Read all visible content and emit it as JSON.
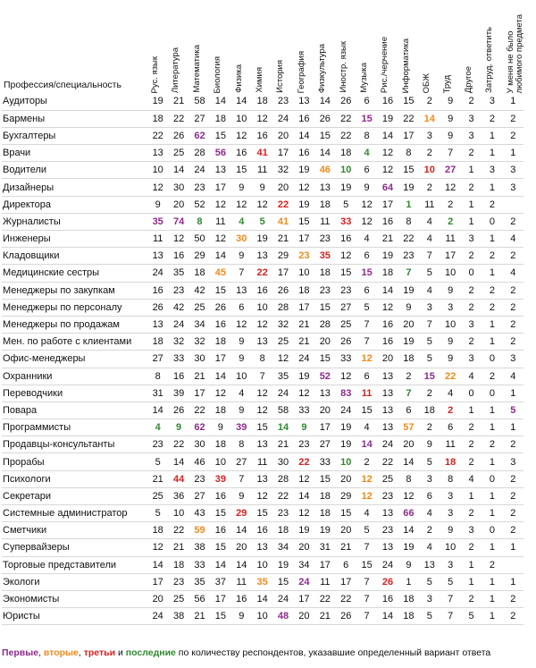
{
  "header": {
    "profession_label": "Профессия/специальность",
    "subjects": [
      "Рус. язык",
      "Литература",
      "Математика",
      "Биология",
      "Физика",
      "Химия",
      "История",
      "География",
      "Физкультура",
      "Иностр. язык",
      "Музыка",
      "Рис./черчение",
      "Информатика",
      "ОБЖ",
      "Труд",
      "Другое",
      "Затруд. ответить",
      "У меня не было\nлюбимого предмета"
    ]
  },
  "colors": {
    "first": "#8e2b8c",
    "second": "#f08a1c",
    "third": "#d72020",
    "last": "#2f8a2f"
  },
  "rows": [
    {
      "name": "Аудиторы",
      "values": [
        19,
        21,
        58,
        14,
        14,
        18,
        23,
        13,
        14,
        26,
        6,
        16,
        15,
        2,
        9,
        2,
        3,
        1
      ],
      "marks": {}
    },
    {
      "name": "Бармены",
      "values": [
        18,
        22,
        27,
        18,
        10,
        12,
        24,
        16,
        26,
        22,
        15,
        19,
        22,
        14,
        9,
        3,
        2,
        2
      ],
      "marks": {
        "10": "r1",
        "13": "r2"
      }
    },
    {
      "name": "Бухгалтеры",
      "values": [
        22,
        26,
        62,
        15,
        12,
        16,
        20,
        14,
        15,
        22,
        8,
        14,
        17,
        3,
        9,
        3,
        1,
        2
      ],
      "marks": {
        "2": "r1"
      }
    },
    {
      "name": "Врачи",
      "values": [
        13,
        25,
        28,
        56,
        16,
        41,
        17,
        16,
        14,
        18,
        4,
        12,
        8,
        2,
        7,
        2,
        1,
        1
      ],
      "marks": {
        "3": "r1",
        "5": "r3",
        "10": "rl"
      }
    },
    {
      "name": "Водители",
      "values": [
        10,
        14,
        24,
        13,
        15,
        11,
        32,
        19,
        46,
        10,
        6,
        12,
        15,
        10,
        27,
        1,
        3,
        3
      ],
      "marks": {
        "8": "r2",
        "9": "rl",
        "13": "r3",
        "14": "r1"
      }
    },
    {
      "name": "Дизайнеры",
      "values": [
        12,
        30,
        23,
        17,
        9,
        9,
        20,
        12,
        13,
        19,
        9,
        64,
        19,
        2,
        12,
        2,
        1,
        3
      ],
      "marks": {
        "11": "r1"
      }
    },
    {
      "name": "Директора",
      "values": [
        9,
        20,
        52,
        12,
        12,
        12,
        22,
        19,
        18,
        5,
        12,
        17,
        1,
        11,
        2,
        1,
        2,
        null
      ],
      "marks": {
        "6": "r3",
        "12": "rl"
      }
    },
    {
      "name": "Журналисты",
      "values": [
        35,
        74,
        8,
        11,
        4,
        5,
        41,
        15,
        11,
        33,
        12,
        16,
        8,
        4,
        2,
        1,
        0,
        2
      ],
      "marks": {
        "0": "r1",
        "1": "r1",
        "2": "rl",
        "4": "rl",
        "5": "rl",
        "6": "r2",
        "9": "r3",
        "14": "rl"
      }
    },
    {
      "name": "Инженеры",
      "values": [
        11,
        12,
        50,
        12,
        30,
        19,
        21,
        17,
        23,
        16,
        4,
        21,
        22,
        4,
        11,
        3,
        1,
        4
      ],
      "marks": {
        "4": "r2"
      }
    },
    {
      "name": "Кладовщики",
      "values": [
        13,
        16,
        29,
        14,
        9,
        13,
        29,
        23,
        35,
        12,
        6,
        19,
        23,
        7,
        17,
        2,
        2,
        2
      ],
      "marks": {
        "7": "r2",
        "8": "r3"
      }
    },
    {
      "name": "Медицинские сестры",
      "values": [
        24,
        35,
        18,
        45,
        7,
        22,
        17,
        10,
        18,
        15,
        15,
        18,
        7,
        5,
        10,
        0,
        1,
        4
      ],
      "marks": {
        "3": "r2",
        "5": "r3",
        "10": "r1",
        "12": "rl"
      }
    },
    {
      "name": "Менеджеры по закупкам",
      "values": [
        16,
        23,
        42,
        15,
        13,
        16,
        26,
        18,
        23,
        23,
        6,
        14,
        19,
        4,
        9,
        2,
        2,
        2
      ],
      "marks": {}
    },
    {
      "name": "Менеджеры по персоналу",
      "values": [
        26,
        42,
        25,
        26,
        6,
        10,
        28,
        17,
        15,
        27,
        5,
        12,
        9,
        3,
        3,
        2,
        2,
        2
      ],
      "marks": {}
    },
    {
      "name": "Менеджеры по продажам",
      "values": [
        13,
        24,
        34,
        16,
        12,
        12,
        32,
        21,
        28,
        25,
        7,
        16,
        20,
        7,
        10,
        3,
        1,
        2
      ],
      "marks": {}
    },
    {
      "name": "Мен. по работе с клиентами",
      "values": [
        18,
        32,
        32,
        18,
        9,
        13,
        25,
        21,
        20,
        26,
        7,
        16,
        19,
        5,
        9,
        2,
        1,
        2
      ],
      "marks": {}
    },
    {
      "name": "Офис-менеджеры",
      "values": [
        27,
        33,
        30,
        17,
        9,
        8,
        12,
        24,
        15,
        33,
        12,
        20,
        18,
        5,
        9,
        3,
        0,
        3
      ],
      "marks": {
        "10": "r2"
      }
    },
    {
      "name": "Охранники",
      "values": [
        8,
        16,
        21,
        14,
        10,
        7,
        35,
        19,
        52,
        12,
        6,
        13,
        2,
        15,
        22,
        4,
        2,
        4
      ],
      "marks": {
        "8": "r1",
        "13": "r1",
        "14": "r2"
      }
    },
    {
      "name": "Переводчики",
      "values": [
        31,
        39,
        17,
        12,
        4,
        12,
        24,
        12,
        13,
        83,
        11,
        13,
        7,
        2,
        4,
        0,
        0,
        1
      ],
      "marks": {
        "9": "r1",
        "10": "r3",
        "12": "rl"
      }
    },
    {
      "name": "Повара",
      "values": [
        14,
        26,
        22,
        18,
        9,
        12,
        58,
        33,
        20,
        24,
        15,
        13,
        6,
        18,
        2,
        1,
        1,
        5
      ],
      "marks": {
        "14": "r3",
        "17": "r1"
      }
    },
    {
      "name": "Программисты",
      "values": [
        4,
        9,
        62,
        9,
        39,
        15,
        14,
        9,
        17,
        19,
        4,
        13,
        57,
        2,
        6,
        2,
        1,
        1
      ],
      "marks": {
        "0": "rl",
        "1": "rl",
        "2": "r1",
        "4": "r1",
        "6": "rl",
        "7": "rl",
        "12": "r2"
      }
    },
    {
      "name": "Продавцы-консультанты",
      "values": [
        23,
        22,
        30,
        18,
        8,
        13,
        21,
        23,
        27,
        19,
        14,
        24,
        20,
        9,
        11,
        2,
        2,
        2
      ],
      "marks": {
        "10": "r1"
      }
    },
    {
      "name": "Прорабы",
      "values": [
        5,
        14,
        46,
        10,
        27,
        11,
        30,
        22,
        33,
        10,
        2,
        22,
        14,
        5,
        18,
        2,
        1,
        3
      ],
      "marks": {
        "7": "r3",
        "9": "rl",
        "14": "r3"
      }
    },
    {
      "name": "Психологи",
      "values": [
        21,
        44,
        23,
        39,
        7,
        13,
        28,
        12,
        15,
        20,
        12,
        25,
        8,
        3,
        8,
        4,
        0,
        2
      ],
      "marks": {
        "1": "r3",
        "3": "r3",
        "10": "r2"
      }
    },
    {
      "name": "Секретари",
      "values": [
        25,
        36,
        27,
        16,
        9,
        12,
        22,
        14,
        18,
        29,
        12,
        23,
        12,
        6,
        3,
        1,
        1,
        2
      ],
      "marks": {
        "10": "r2"
      }
    },
    {
      "name": "Системные администратор",
      "values": [
        5,
        10,
        43,
        15,
        29,
        15,
        23,
        12,
        18,
        15,
        4,
        13,
        66,
        4,
        3,
        2,
        1,
        2
      ],
      "marks": {
        "4": "r3",
        "12": "r1"
      }
    },
    {
      "name": "Сметчики",
      "values": [
        18,
        22,
        59,
        16,
        14,
        16,
        18,
        19,
        19,
        20,
        5,
        23,
        14,
        2,
        9,
        3,
        0,
        2
      ],
      "marks": {
        "2": "r2"
      }
    },
    {
      "name": "Супервайзеры",
      "values": [
        12,
        21,
        38,
        15,
        20,
        13,
        34,
        20,
        31,
        21,
        7,
        13,
        19,
        4,
        10,
        2,
        1,
        1
      ],
      "marks": {}
    },
    {
      "name": "Торговые представители",
      "values": [
        14,
        18,
        33,
        14,
        14,
        10,
        19,
        34,
        17,
        6,
        15,
        24,
        9,
        13,
        3,
        1,
        2,
        null
      ],
      "marks": {}
    },
    {
      "name": "Экологи",
      "values": [
        17,
        23,
        35,
        37,
        11,
        35,
        15,
        24,
        11,
        17,
        7,
        26,
        1,
        5,
        5,
        1,
        1,
        1
      ],
      "marks": {
        "5": "r2",
        "7": "r1",
        "11": "r3"
      }
    },
    {
      "name": "Экономисты",
      "values": [
        20,
        25,
        56,
        17,
        16,
        14,
        24,
        17,
        22,
        22,
        7,
        16,
        18,
        3,
        7,
        2,
        1,
        2
      ],
      "marks": {}
    },
    {
      "name": "Юристы",
      "values": [
        24,
        38,
        21,
        15,
        9,
        10,
        48,
        20,
        21,
        26,
        7,
        14,
        18,
        5,
        7,
        5,
        1,
        2
      ],
      "marks": {
        "6": "r1"
      }
    }
  ],
  "legend": {
    "first": "Первые",
    "comma1": ", ",
    "second": "вторые",
    "comma2": ", ",
    "third": "третьи",
    "and": " и ",
    "last": "последние",
    "rest": " по количеству респондентов, указавшие определенный вариант ответа"
  }
}
